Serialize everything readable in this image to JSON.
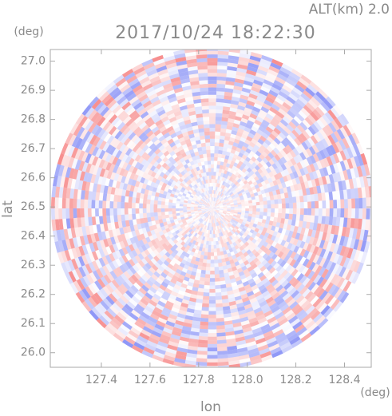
{
  "chart_data": {
    "type": "radar-ppi",
    "title": "2017/10/24 18:22:30",
    "annotation": "ALT(km) 2.0",
    "x_label": "lon",
    "y_label": "lat",
    "x_unit": "(deg)",
    "y_unit": "(deg)",
    "xlim": [
      127.19,
      128.51
    ],
    "ylim": [
      25.95,
      27.04
    ],
    "xticks": [
      127.4,
      127.6,
      127.8,
      {
        "value": 128.0,
        "label": "128.0"
      },
      128.2,
      128.4
    ],
    "yticks": [
      {
        "value": 26.0,
        "label": "26.0"
      },
      26.1,
      26.2,
      26.3,
      26.4,
      26.5,
      26.6,
      26.7,
      26.8,
      26.9,
      {
        "value": 27.0,
        "label": "27.0"
      }
    ]
  }
}
